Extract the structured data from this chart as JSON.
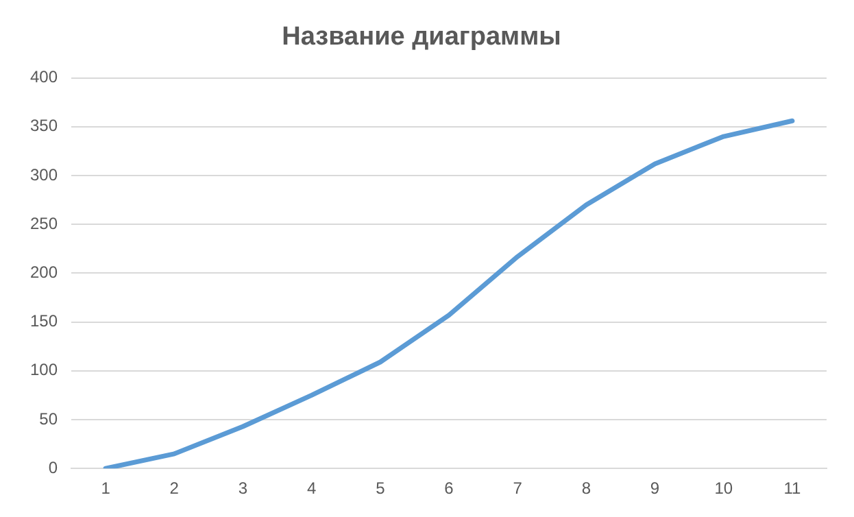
{
  "chart_data": {
    "type": "line",
    "title": "Название диаграммы",
    "categories": [
      "1",
      "2",
      "3",
      "4",
      "5",
      "6",
      "7",
      "8",
      "9",
      "10",
      "11"
    ],
    "series": [
      {
        "color": "#5b9bd5",
        "values": [
          0,
          15,
          43,
          75,
          109,
          157,
          217,
          270,
          312,
          340,
          356
        ]
      }
    ],
    "ylim": [
      0,
      400
    ],
    "yticks": [
      0,
      50,
      100,
      150,
      200,
      250,
      300,
      350,
      400
    ],
    "grid": "y",
    "legend": false,
    "marker": "none",
    "line_style": "solid"
  }
}
